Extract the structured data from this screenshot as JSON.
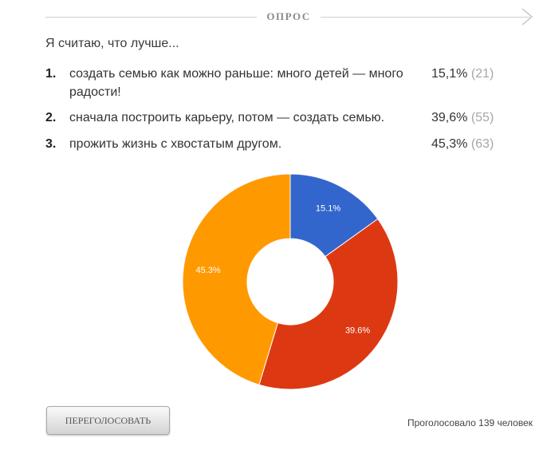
{
  "header": {
    "title": "ОПРОС"
  },
  "poll": {
    "question": "Я считаю, что лучше...",
    "options": [
      {
        "num": "1.",
        "text": "создать семью как можно раньше: много детей — много радости!",
        "percent": "15,1%",
        "count": "(21)"
      },
      {
        "num": "2.",
        "text": "сначала построить карьеру, потом — создать семью.",
        "percent": "39,6%",
        "count": "(55)"
      },
      {
        "num": "3.",
        "text": "прожить жизнь с хвостатым другом.",
        "percent": "45,3%",
        "count": "(63)"
      }
    ]
  },
  "chart_data": {
    "type": "pie",
    "donut": true,
    "start": "top",
    "direction": "clockwise",
    "slices": [
      {
        "label": "15.1%",
        "value": 21,
        "color": "#3366cc"
      },
      {
        "label": "39.6%",
        "value": 55,
        "color": "#dc3912"
      },
      {
        "label": "45.3%",
        "value": 63,
        "color": "#ff9900"
      }
    ]
  },
  "footer": {
    "vote_label": "ПЕРЕГОЛОСОВАТЬ",
    "total_text": "Проголосовало 139 человек"
  }
}
